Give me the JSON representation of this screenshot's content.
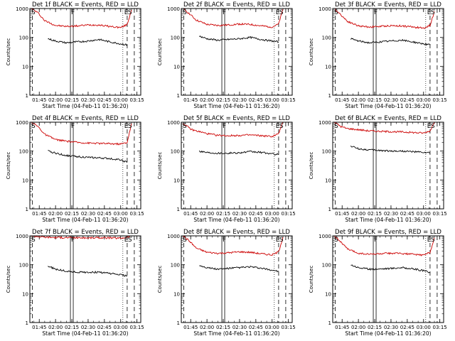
{
  "chart_data": [
    {
      "type": "line",
      "title": "Det 1f BLACK = Events, RED = LLD",
      "xlabel": "Start Time (04-Feb-11 01:36:20)",
      "ylabel": "Counts/sec",
      "xlim": [
        "01:36:20",
        "03:18:30"
      ],
      "ylim": [
        1,
        1000
      ],
      "log_y": true,
      "grid": false,
      "x_tick_labels": [
        "01:45",
        "02:00",
        "02:15",
        "02:30",
        "02:45",
        "03:00",
        "03:15"
      ],
      "y_tick_labels": [
        "1",
        "10",
        "100",
        "1000"
      ],
      "markers": {
        "S_left": "01:38",
        "F": "02:15",
        "E": "03:02",
        "S_right": "03:06"
      },
      "series": [
        {
          "color": "#cc0000",
          "x": [
            "01:38",
            "01:44",
            "01:50",
            "02:00",
            "02:10",
            "02:20",
            "02:30",
            "02:40",
            "02:50",
            "03:00",
            "03:06",
            "03:10"
          ],
          "y": [
            1000,
            700,
            380,
            260,
            240,
            250,
            270,
            270,
            240,
            220,
            280,
            900
          ]
        },
        {
          "color": "#000000",
          "x": [
            "01:53",
            "02:00",
            "02:10",
            "02:20",
            "02:30",
            "02:40",
            "02:50",
            "03:00",
            "03:06"
          ],
          "y": [
            90,
            75,
            65,
            70,
            75,
            85,
            70,
            60,
            55
          ]
        }
      ]
    },
    {
      "type": "line",
      "title": "Det 2f BLACK = Events, RED = LLD",
      "xlabel": "Start Time (04-Feb-11 01:36:20)",
      "ylabel": "Counts/sec",
      "xlim": [
        "01:36:20",
        "03:18:30"
      ],
      "ylim": [
        1,
        1000
      ],
      "log_y": true,
      "grid": false,
      "x_tick_labels": [
        "01:45",
        "02:00",
        "02:15",
        "02:30",
        "02:45",
        "03:00",
        "03:15"
      ],
      "y_tick_labels": [
        "1",
        "10",
        "100",
        "1000"
      ],
      "markers": {
        "S_left": "01:38",
        "F": "02:15",
        "E": "03:02",
        "S_right": "03:06"
      },
      "series": [
        {
          "color": "#cc0000",
          "x": [
            "01:38",
            "01:44",
            "01:50",
            "02:00",
            "02:10",
            "02:20",
            "02:30",
            "02:40",
            "02:50",
            "03:00",
            "03:06",
            "03:10"
          ],
          "y": [
            1000,
            650,
            400,
            280,
            260,
            270,
            290,
            280,
            250,
            230,
            290,
            950
          ]
        },
        {
          "color": "#000000",
          "x": [
            "01:53",
            "02:00",
            "02:10",
            "02:20",
            "02:30",
            "02:40",
            "02:50",
            "03:00",
            "03:06"
          ],
          "y": [
            110,
            90,
            80,
            85,
            90,
            100,
            85,
            75,
            70
          ]
        }
      ]
    },
    {
      "type": "line",
      "title": "Det 3f BLACK = Events, RED = LLD",
      "xlabel": "Start Time (04-Feb-11 01:36:20)",
      "ylabel": "Counts/sec",
      "xlim": [
        "01:36:20",
        "03:18:30"
      ],
      "ylim": [
        1,
        1000
      ],
      "log_y": true,
      "grid": false,
      "x_tick_labels": [
        "01:45",
        "02:00",
        "02:15",
        "02:30",
        "02:45",
        "03:00",
        "03:15"
      ],
      "y_tick_labels": [
        "1",
        "10",
        "100",
        "1000"
      ],
      "markers": {
        "S_left": "01:38",
        "F": "02:15",
        "E": "03:02",
        "S_right": "03:06"
      },
      "series": [
        {
          "color": "#cc0000",
          "x": [
            "01:38",
            "01:44",
            "01:50",
            "02:00",
            "02:10",
            "02:20",
            "02:30",
            "02:40",
            "02:50",
            "03:00",
            "03:06",
            "03:10"
          ],
          "y": [
            1000,
            600,
            360,
            250,
            230,
            240,
            255,
            250,
            230,
            210,
            260,
            800
          ]
        },
        {
          "color": "#000000",
          "x": [
            "01:53",
            "02:00",
            "02:10",
            "02:20",
            "02:30",
            "02:40",
            "02:50",
            "03:00",
            "03:06"
          ],
          "y": [
            90,
            75,
            65,
            70,
            75,
            80,
            70,
            60,
            55
          ]
        }
      ]
    },
    {
      "type": "line",
      "title": "Det 4f BLACK = Events, RED = LLD",
      "xlabel": "Start Time (04-Feb-11 01:36:20)",
      "ylabel": "Counts/sec",
      "xlim": [
        "01:36:20",
        "03:18:30"
      ],
      "ylim": [
        1,
        1000
      ],
      "log_y": true,
      "grid": false,
      "x_tick_labels": [
        "01:45",
        "02:00",
        "02:15",
        "02:30",
        "02:45",
        "03:00",
        "03:15"
      ],
      "y_tick_labels": [
        "1",
        "10",
        "100",
        "1000"
      ],
      "markers": {
        "S_left": "01:38",
        "F": "02:15",
        "E": "03:02",
        "S_right": "03:06"
      },
      "series": [
        {
          "color": "#cc0000",
          "x": [
            "01:38",
            "01:44",
            "01:50",
            "02:00",
            "02:10",
            "02:20",
            "02:30",
            "02:40",
            "02:50",
            "03:00",
            "03:06",
            "03:10"
          ],
          "y": [
            1000,
            700,
            380,
            250,
            220,
            200,
            190,
            185,
            180,
            175,
            200,
            900
          ]
        },
        {
          "color": "#000000",
          "x": [
            "01:53",
            "02:00",
            "02:10",
            "02:20",
            "02:30",
            "02:40",
            "02:50",
            "03:00",
            "03:06"
          ],
          "y": [
            100,
            85,
            70,
            65,
            60,
            58,
            55,
            50,
            40
          ]
        }
      ]
    },
    {
      "type": "line",
      "title": "Det 5f BLACK = Events, RED = LLD",
      "xlabel": "Start Time (04-Feb-11 01:36:20)",
      "ylabel": "Counts/sec",
      "xlim": [
        "01:36:20",
        "03:18:30"
      ],
      "ylim": [
        1,
        1000
      ],
      "log_y": true,
      "grid": false,
      "x_tick_labels": [
        "01:45",
        "02:00",
        "02:15",
        "02:30",
        "02:45",
        "03:00",
        "03:15"
      ],
      "y_tick_labels": [
        "1",
        "10",
        "100",
        "1000"
      ],
      "markers": {
        "S_left": "01:38",
        "F": "02:15",
        "E": "03:02",
        "S_right": "03:06"
      },
      "series": [
        {
          "color": "#cc0000",
          "x": [
            "01:38",
            "01:42",
            "01:46",
            "01:50",
            "01:55",
            "02:00",
            "02:10",
            "02:20",
            "02:30",
            "02:40",
            "02:50",
            "03:00",
            "03:06",
            "03:10"
          ],
          "y": [
            900,
            700,
            550,
            500,
            450,
            400,
            350,
            340,
            350,
            360,
            340,
            320,
            400,
            1000
          ]
        },
        {
          "color": "#000000",
          "x": [
            "01:53",
            "02:00",
            "02:10",
            "02:20",
            "02:30",
            "02:40",
            "02:50",
            "03:00",
            "03:06"
          ],
          "y": [
            100,
            90,
            85,
            85,
            88,
            95,
            90,
            80,
            75
          ]
        }
      ]
    },
    {
      "type": "line",
      "title": "Det 6f BLACK = Events, RED = LLD",
      "xlabel": "Start Time (04-Feb-11 01:36:20)",
      "ylabel": "Counts/sec",
      "xlim": [
        "01:36:20",
        "03:18:30"
      ],
      "ylim": [
        1,
        1000
      ],
      "log_y": true,
      "grid": false,
      "x_tick_labels": [
        "01:45",
        "02:00",
        "02:15",
        "02:30",
        "02:45",
        "03:00",
        "03:15"
      ],
      "y_tick_labels": [
        "1",
        "10",
        "100",
        "1000"
      ],
      "markers": {
        "S_left": "01:38",
        "F": "02:15",
        "E": "03:02",
        "S_right": "03:06"
      },
      "series": [
        {
          "color": "#cc0000",
          "x": [
            "01:38",
            "01:44",
            "01:50",
            "02:00",
            "02:10",
            "02:20",
            "02:30",
            "02:40",
            "02:50",
            "03:00",
            "03:06",
            "03:10"
          ],
          "y": [
            1000,
            700,
            600,
            550,
            500,
            480,
            470,
            460,
            440,
            420,
            500,
            1000
          ]
        },
        {
          "color": "#000000",
          "x": [
            "01:53",
            "02:00",
            "02:10",
            "02:20",
            "02:30",
            "02:40",
            "02:50",
            "03:00",
            "03:06"
          ],
          "y": [
            150,
            120,
            110,
            105,
            100,
            100,
            95,
            90,
            85
          ]
        }
      ]
    },
    {
      "type": "line",
      "title": "Det 7f BLACK = Events, RED = LLD",
      "xlabel": "Start Time (04-Feb-11 01:36:20)",
      "ylabel": "Counts/sec",
      "xlim": [
        "01:36:20",
        "03:18:30"
      ],
      "ylim": [
        1,
        1000
      ],
      "log_y": true,
      "grid": false,
      "x_tick_labels": [
        "01:45",
        "02:00",
        "02:15",
        "02:30",
        "02:45",
        "03:00",
        "03:15"
      ],
      "y_tick_labels": [
        "1",
        "10",
        "100",
        "1000"
      ],
      "markers": {
        "S_left": "01:38",
        "F": "02:15",
        "E": "03:02",
        "S_right": "03:06"
      },
      "series": [
        {
          "color": "#cc0000",
          "x": [
            "01:38",
            "01:44",
            "01:50",
            "02:00",
            "02:10",
            "02:20",
            "02:30",
            "02:40",
            "02:50",
            "03:00",
            "03:06",
            "03:10"
          ],
          "y": [
            1000,
            950,
            900,
            880,
            870,
            860,
            850,
            860,
            850,
            830,
            900,
            1000
          ]
        },
        {
          "color": "#000000",
          "x": [
            "01:53",
            "02:00",
            "02:10",
            "02:20",
            "02:30",
            "02:40",
            "02:50",
            "03:00",
            "03:06"
          ],
          "y": [
            90,
            70,
            60,
            55,
            55,
            55,
            50,
            45,
            40
          ]
        }
      ]
    },
    {
      "type": "line",
      "title": "Det 8f BLACK = Events, RED = LLD",
      "xlabel": "Start Time (04-Feb-11 01:36:20)",
      "ylabel": "Counts/sec",
      "xlim": [
        "01:36:20",
        "03:18:30"
      ],
      "ylim": [
        1,
        1000
      ],
      "log_y": true,
      "grid": false,
      "x_tick_labels": [
        "01:45",
        "02:00",
        "02:15",
        "02:30",
        "02:45",
        "03:00",
        "03:15"
      ],
      "y_tick_labels": [
        "1",
        "10",
        "100",
        "1000"
      ],
      "markers": {
        "S_left": "01:38",
        "F": "02:15",
        "E": "03:02",
        "S_right": "03:06"
      },
      "series": [
        {
          "color": "#cc0000",
          "x": [
            "01:38",
            "01:44",
            "01:50",
            "02:00",
            "02:10",
            "02:20",
            "02:30",
            "02:40",
            "02:50",
            "03:00",
            "03:06",
            "03:10"
          ],
          "y": [
            1000,
            650,
            380,
            270,
            250,
            260,
            280,
            270,
            240,
            220,
            280,
            900
          ]
        },
        {
          "color": "#000000",
          "x": [
            "01:53",
            "02:00",
            "02:10",
            "02:20",
            "02:30",
            "02:40",
            "02:50",
            "03:00",
            "03:06"
          ],
          "y": [
            95,
            80,
            70,
            75,
            80,
            85,
            75,
            65,
            60
          ]
        }
      ]
    },
    {
      "type": "line",
      "title": "Det 9f BLACK = Events, RED = LLD",
      "xlabel": "Start Time (04-Feb-11 01:36:20)",
      "ylabel": "Counts/sec",
      "xlim": [
        "01:36:20",
        "03:18:30"
      ],
      "ylim": [
        1,
        1000
      ],
      "log_y": true,
      "grid": false,
      "x_tick_labels": [
        "01:45",
        "02:00",
        "02:15",
        "02:30",
        "02:45",
        "03:00",
        "03:15"
      ],
      "y_tick_labels": [
        "1",
        "10",
        "100",
        "1000"
      ],
      "markers": {
        "S_left": "01:38",
        "F": "02:15",
        "E": "03:02",
        "S_right": "03:06"
      },
      "series": [
        {
          "color": "#cc0000",
          "x": [
            "01:38",
            "01:44",
            "01:50",
            "02:00",
            "02:10",
            "02:20",
            "02:30",
            "02:40",
            "02:50",
            "03:00",
            "03:06",
            "03:10"
          ],
          "y": [
            1000,
            600,
            350,
            250,
            230,
            240,
            250,
            245,
            230,
            215,
            270,
            850
          ]
        },
        {
          "color": "#000000",
          "x": [
            "01:53",
            "02:00",
            "02:10",
            "02:20",
            "02:30",
            "02:40",
            "02:50",
            "03:00",
            "03:06"
          ],
          "y": [
            100,
            80,
            70,
            72,
            75,
            80,
            72,
            62,
            55
          ]
        }
      ]
    }
  ]
}
